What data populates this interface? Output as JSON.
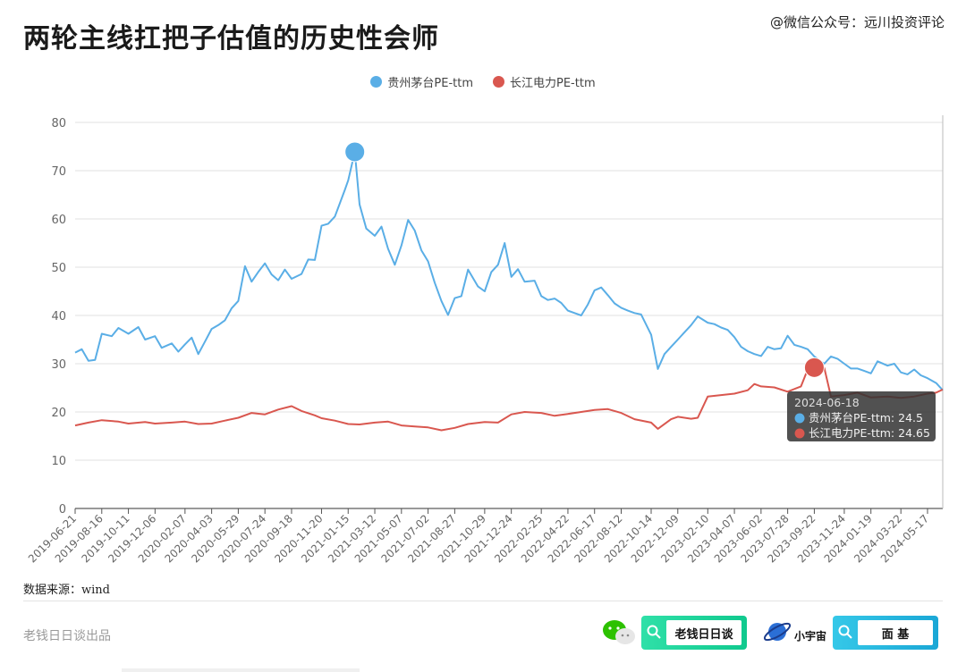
{
  "title": "两轮主线扛把子估值的历史性会师",
  "watermark": "@微信公众号：远川投资评论",
  "legend": [
    {
      "label": "贵州茅台PE-ttm",
      "color": "#5aaee6"
    },
    {
      "label": "长江电力PE-ttm",
      "color": "#d9574f"
    }
  ],
  "source": "数据来源：wind",
  "footer": {
    "brand": "老钱日日谈出品",
    "pill1_label": "老钱日日谈",
    "planet_label": "小宇宙",
    "pill2_label": "面 基"
  },
  "chart_data": {
    "type": "line",
    "title": "两轮主线扛把子估值的历史性会师",
    "ylim": [
      0,
      80
    ],
    "yticks": [
      0,
      10,
      20,
      30,
      40,
      50,
      60,
      70,
      80
    ],
    "grid": true,
    "legend_position": "top",
    "x_start": "2019-06-21",
    "x_end": "2024-06-18",
    "xtick_labels": [
      "2019-06-21",
      "2019-08-16",
      "2019-10-11",
      "2019-12-06",
      "2020-02-07",
      "2020-04-03",
      "2020-05-29",
      "2020-07-24",
      "2020-09-18",
      "2020-11-20",
      "2021-01-15",
      "2021-03-12",
      "2021-05-07",
      "2021-07-02",
      "2021-08-27",
      "2021-10-29",
      "2021-12-24",
      "2022-02-25",
      "2022-04-22",
      "2022-06-17",
      "2022-08-12",
      "2022-10-14",
      "2022-12-09",
      "2023-02-10",
      "2023-04-07",
      "2023-06-02",
      "2023-07-28",
      "2023-09-22",
      "2023-11-24",
      "2024-01-19",
      "2024-03-22",
      "2024-05-17"
    ],
    "series": [
      {
        "name": "贵州茅台PE-ttm",
        "color": "#5aaee6",
        "points": [
          [
            "2019-06-21",
            32.3
          ],
          [
            "2019-07-05",
            33.0
          ],
          [
            "2019-07-19",
            30.6
          ],
          [
            "2019-08-02",
            30.8
          ],
          [
            "2019-08-16",
            36.2
          ],
          [
            "2019-09-06",
            35.7
          ],
          [
            "2019-09-20",
            37.4
          ],
          [
            "2019-10-11",
            36.2
          ],
          [
            "2019-11-01",
            37.6
          ],
          [
            "2019-11-15",
            35.0
          ],
          [
            "2019-12-06",
            35.7
          ],
          [
            "2019-12-20",
            33.3
          ],
          [
            "2020-01-10",
            34.2
          ],
          [
            "2020-01-24",
            32.5
          ],
          [
            "2020-02-07",
            34.0
          ],
          [
            "2020-02-21",
            35.4
          ],
          [
            "2020-03-06",
            32.0
          ],
          [
            "2020-03-20",
            34.6
          ],
          [
            "2020-04-03",
            37.2
          ],
          [
            "2020-04-17",
            38.0
          ],
          [
            "2020-05-01",
            39.0
          ],
          [
            "2020-05-15",
            41.5
          ],
          [
            "2020-05-29",
            43.0
          ],
          [
            "2020-06-12",
            50.2
          ],
          [
            "2020-06-26",
            47.0
          ],
          [
            "2020-07-10",
            49.0
          ],
          [
            "2020-07-24",
            50.8
          ],
          [
            "2020-08-07",
            48.5
          ],
          [
            "2020-08-21",
            47.3
          ],
          [
            "2020-09-04",
            49.5
          ],
          [
            "2020-09-18",
            47.6
          ],
          [
            "2020-10-09",
            48.6
          ],
          [
            "2020-10-23",
            51.6
          ],
          [
            "2020-11-06",
            51.5
          ],
          [
            "2020-11-20",
            58.6
          ],
          [
            "2020-12-04",
            59.0
          ],
          [
            "2020-12-18",
            60.5
          ],
          [
            "2021-01-08",
            66.0
          ],
          [
            "2021-01-15",
            68.0
          ],
          [
            "2021-01-29",
            73.9
          ],
          [
            "2021-02-08",
            63.0
          ],
          [
            "2021-02-22",
            58.0
          ],
          [
            "2021-03-12",
            56.5
          ],
          [
            "2021-03-26",
            58.4
          ],
          [
            "2021-04-09",
            53.8
          ],
          [
            "2021-04-23",
            50.5
          ],
          [
            "2021-05-07",
            54.5
          ],
          [
            "2021-05-21",
            59.8
          ],
          [
            "2021-06-04",
            57.6
          ],
          [
            "2021-06-18",
            53.5
          ],
          [
            "2021-07-02",
            51.2
          ],
          [
            "2021-07-16",
            46.8
          ],
          [
            "2021-07-30",
            43.0
          ],
          [
            "2021-08-13",
            40.1
          ],
          [
            "2021-08-27",
            43.6
          ],
          [
            "2021-09-10",
            44.0
          ],
          [
            "2021-09-24",
            49.5
          ],
          [
            "2021-10-15",
            46.0
          ],
          [
            "2021-10-29",
            45.0
          ],
          [
            "2021-11-12",
            49.0
          ],
          [
            "2021-11-26",
            50.5
          ],
          [
            "2021-12-10",
            55.0
          ],
          [
            "2021-12-24",
            48.0
          ],
          [
            "2022-01-07",
            49.6
          ],
          [
            "2022-01-21",
            47.0
          ],
          [
            "2022-02-11",
            47.2
          ],
          [
            "2022-02-25",
            44.0
          ],
          [
            "2022-03-11",
            43.2
          ],
          [
            "2022-03-25",
            43.5
          ],
          [
            "2022-04-08",
            42.6
          ],
          [
            "2022-04-22",
            41.0
          ],
          [
            "2022-05-06",
            40.5
          ],
          [
            "2022-05-20",
            40.0
          ],
          [
            "2022-06-03",
            42.3
          ],
          [
            "2022-06-17",
            45.2
          ],
          [
            "2022-07-01",
            45.8
          ],
          [
            "2022-07-15",
            44.2
          ],
          [
            "2022-07-29",
            42.5
          ],
          [
            "2022-08-12",
            41.6
          ],
          [
            "2022-08-26",
            41.0
          ],
          [
            "2022-09-09",
            40.5
          ],
          [
            "2022-09-23",
            40.2
          ],
          [
            "2022-10-14",
            36.0
          ],
          [
            "2022-10-28",
            28.9
          ],
          [
            "2022-11-11",
            32.0
          ],
          [
            "2022-11-25",
            33.5
          ],
          [
            "2022-12-09",
            35.0
          ],
          [
            "2022-12-23",
            36.5
          ],
          [
            "2023-01-06",
            38.0
          ],
          [
            "2023-01-20",
            39.8
          ],
          [
            "2023-02-10",
            38.5
          ],
          [
            "2023-02-24",
            38.2
          ],
          [
            "2023-03-10",
            37.5
          ],
          [
            "2023-03-24",
            37.0
          ],
          [
            "2023-04-07",
            35.5
          ],
          [
            "2023-04-21",
            33.5
          ],
          [
            "2023-05-05",
            32.6
          ],
          [
            "2023-05-19",
            32.0
          ],
          [
            "2023-06-02",
            31.6
          ],
          [
            "2023-06-16",
            33.5
          ],
          [
            "2023-06-30",
            33.0
          ],
          [
            "2023-07-14",
            33.2
          ],
          [
            "2023-07-28",
            35.8
          ],
          [
            "2023-08-11",
            33.9
          ],
          [
            "2023-08-25",
            33.5
          ],
          [
            "2023-09-08",
            33.0
          ],
          [
            "2023-09-22",
            31.5
          ],
          [
            "2023-10-13",
            30.0
          ],
          [
            "2023-10-27",
            31.5
          ],
          [
            "2023-11-10",
            31.0
          ],
          [
            "2023-11-24",
            30.0
          ],
          [
            "2023-12-08",
            29.0
          ],
          [
            "2023-12-22",
            29.0
          ],
          [
            "2024-01-05",
            28.5
          ],
          [
            "2024-01-19",
            28.0
          ],
          [
            "2024-02-02",
            30.5
          ],
          [
            "2024-02-23",
            29.6
          ],
          [
            "2024-03-08",
            30.0
          ],
          [
            "2024-03-22",
            28.2
          ],
          [
            "2024-04-05",
            27.8
          ],
          [
            "2024-04-19",
            28.8
          ],
          [
            "2024-05-03",
            27.6
          ],
          [
            "2024-05-17",
            27.0
          ],
          [
            "2024-06-04",
            26.0
          ],
          [
            "2024-06-18",
            24.5
          ]
        ]
      },
      {
        "name": "长江电力PE-ttm",
        "color": "#d9574f",
        "points": [
          [
            "2019-06-21",
            17.2
          ],
          [
            "2019-07-19",
            17.8
          ],
          [
            "2019-08-16",
            18.3
          ],
          [
            "2019-09-20",
            18.0
          ],
          [
            "2019-10-11",
            17.6
          ],
          [
            "2019-11-15",
            17.9
          ],
          [
            "2019-12-06",
            17.6
          ],
          [
            "2020-01-10",
            17.8
          ],
          [
            "2020-02-07",
            18.0
          ],
          [
            "2020-03-06",
            17.5
          ],
          [
            "2020-04-03",
            17.6
          ],
          [
            "2020-05-01",
            18.2
          ],
          [
            "2020-05-29",
            18.8
          ],
          [
            "2020-06-26",
            19.8
          ],
          [
            "2020-07-24",
            19.5
          ],
          [
            "2020-08-21",
            20.5
          ],
          [
            "2020-09-18",
            21.2
          ],
          [
            "2020-10-09",
            20.2
          ],
          [
            "2020-11-06",
            19.3
          ],
          [
            "2020-11-20",
            18.7
          ],
          [
            "2020-12-18",
            18.2
          ],
          [
            "2021-01-15",
            17.5
          ],
          [
            "2021-02-08",
            17.4
          ],
          [
            "2021-03-12",
            17.8
          ],
          [
            "2021-04-09",
            18.0
          ],
          [
            "2021-05-07",
            17.2
          ],
          [
            "2021-06-04",
            17.0
          ],
          [
            "2021-07-02",
            16.8
          ],
          [
            "2021-07-30",
            16.2
          ],
          [
            "2021-08-27",
            16.7
          ],
          [
            "2021-09-24",
            17.5
          ],
          [
            "2021-10-29",
            17.9
          ],
          [
            "2021-11-26",
            17.8
          ],
          [
            "2021-12-24",
            19.5
          ],
          [
            "2022-01-21",
            20.0
          ],
          [
            "2022-02-25",
            19.8
          ],
          [
            "2022-03-25",
            19.2
          ],
          [
            "2022-04-22",
            19.6
          ],
          [
            "2022-05-20",
            20.0
          ],
          [
            "2022-06-17",
            20.4
          ],
          [
            "2022-07-15",
            20.6
          ],
          [
            "2022-08-12",
            19.8
          ],
          [
            "2022-09-09",
            18.5
          ],
          [
            "2022-10-14",
            17.8
          ],
          [
            "2022-10-28",
            16.5
          ],
          [
            "2022-11-25",
            18.5
          ],
          [
            "2022-12-09",
            19.0
          ],
          [
            "2023-01-06",
            18.6
          ],
          [
            "2023-01-20",
            18.8
          ],
          [
            "2023-02-10",
            23.2
          ],
          [
            "2023-03-10",
            23.5
          ],
          [
            "2023-04-07",
            23.8
          ],
          [
            "2023-05-05",
            24.5
          ],
          [
            "2023-05-19",
            25.8
          ],
          [
            "2023-06-02",
            25.3
          ],
          [
            "2023-06-30",
            25.1
          ],
          [
            "2023-07-28",
            24.2
          ],
          [
            "2023-08-25",
            25.3
          ],
          [
            "2023-09-08",
            28.8
          ],
          [
            "2023-09-22",
            29.2
          ],
          [
            "2023-10-13",
            29.1
          ],
          [
            "2023-10-27",
            23.2
          ],
          [
            "2023-11-24",
            23.5
          ],
          [
            "2023-12-22",
            24.0
          ],
          [
            "2024-01-19",
            23.0
          ],
          [
            "2024-02-23",
            23.2
          ],
          [
            "2024-03-22",
            22.9
          ],
          [
            "2024-04-19",
            23.2
          ],
          [
            "2024-05-17",
            23.8
          ],
          [
            "2024-06-04",
            24.0
          ],
          [
            "2024-06-18",
            24.65
          ]
        ]
      }
    ],
    "highlight_points": [
      {
        "series": "贵州茅台PE-ttm",
        "x": "2021-01-29",
        "y": 73.9
      },
      {
        "series": "长江电力PE-ttm",
        "x": "2023-09-22",
        "y": 29.2
      }
    ],
    "tooltip": {
      "date": "2024-06-18",
      "rows": [
        {
          "label": "贵州茅台PE-ttm: 24.5",
          "color": "#5aaee6"
        },
        {
          "label": "长江电力PE-ttm: 24.65",
          "color": "#d9574f"
        }
      ]
    }
  }
}
